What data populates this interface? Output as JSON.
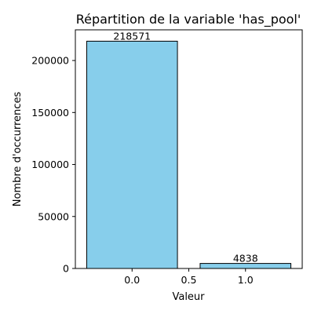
{
  "chart_data": {
    "type": "bar",
    "title": "Répartition de la variable 'has_pool'",
    "xlabel": "Valeur",
    "ylabel": "Nombre d'occurrences",
    "x": [
      0,
      1
    ],
    "values": [
      218571,
      4838
    ],
    "data_labels": [
      "218571",
      "4838"
    ],
    "bar_width": 0.8,
    "xlim": [
      -0.5,
      1.5
    ],
    "ylim": [
      0,
      229496
    ],
    "xticks": [
      0.0,
      0.5,
      1.0
    ],
    "xtick_labels": [
      "0.0",
      "0.5",
      "1.0"
    ],
    "yticks": [
      0,
      50000,
      100000,
      150000,
      200000
    ],
    "ytick_labels": [
      "0",
      "50000",
      "100000",
      "150000",
      "200000"
    ],
    "grid": false,
    "legend": "none",
    "colors": {
      "bar_fill": "#87CEEB",
      "bar_edge": "#000000"
    }
  }
}
